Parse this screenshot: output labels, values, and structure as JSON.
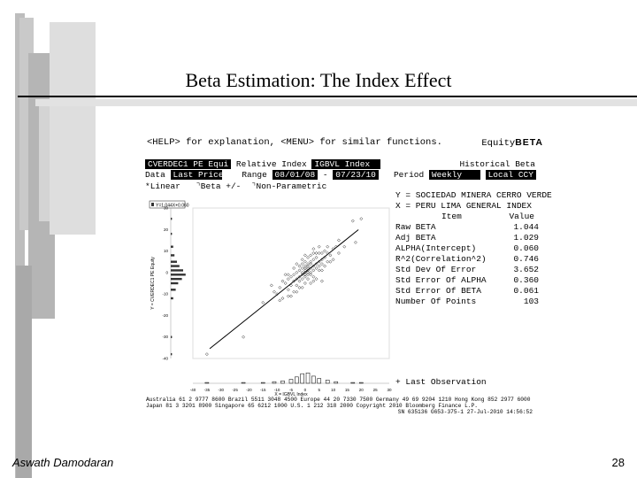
{
  "slide": {
    "title": "Beta Estimation: The Index Effect",
    "author": "Aswath Damodaran",
    "page_number": "28"
  },
  "terminal": {
    "help_line": "<HELP> for explanation, <MENU> for similar functions.",
    "brand_prefix": "Equity",
    "brand_suffix": "BETA",
    "security": "CVERDEC1 PE Equi",
    "relative_index_label": "Relative Index",
    "relative_index": "IGBVL Index",
    "historical_beta": "Historical Beta",
    "data_label": "Data",
    "data_value": "Last Price",
    "range_label": "Range",
    "range_start": "08/01/08",
    "range_sep": "-",
    "range_end": "07/23/10",
    "period_label": "Period",
    "period_value": "Weekly",
    "currency": "Local CCY",
    "opt_linear": "Linear",
    "opt_beta": "Beta +/-",
    "opt_nonparam": "Non-Parametric",
    "y_def": "Y = SOCIEDAD MINERA CERRO VERDE",
    "x_def": "X = PERU LIMA GENERAL INDEX",
    "col_item": "Item",
    "col_value": "Value",
    "stats": [
      {
        "label": "Raw BETA",
        "value": "1.044"
      },
      {
        "label": "Adj BETA",
        "value": "1.029"
      },
      {
        "label": "ALPHA(Intercept)",
        "value": "0.060"
      },
      {
        "label": "R^2(Correlation^2)",
        "value": "0.746"
      },
      {
        "label": "Std Dev Of Error",
        "value": "3.652"
      },
      {
        "label": "Std Error Of ALPHA",
        "value": "0.360"
      },
      {
        "label": "Std Error Of BETA",
        "value": "0.061"
      },
      {
        "label": "Number Of Points",
        "value": "103"
      }
    ],
    "last_observation": "Last Observation",
    "y_axis_label": "Y = CVERDEC1 PE Equity",
    "x_axis_label": "X = IGBVL Index",
    "legend_text": "Y=1.044X+0.060",
    "footer_line1": "Australia 61 2 9777 8600 Brazil 5511 3048 4500 Europe 44 20 7330 7500 Germany 49 69 9204 1210 Hong Kong 852 2977 6000",
    "footer_line2": "Japan 81 3 3201 8900        Singapore 65 6212 1000       U.S. 1 212 318 2000         Copyright 2010 Bloomberg Finance L.P.",
    "footer_line3": "SN 635136 G653-375-1 27-Jul-2010 14:56:52"
  },
  "chart_data": {
    "type": "scatter",
    "title": "",
    "xlabel": "X = IGBVL Index",
    "ylabel": "Y = CVERDEC1 PE Equity",
    "xlim": [
      -40,
      30
    ],
    "ylim": [
      -40,
      30
    ],
    "x_ticks": [
      -40,
      -35,
      -30,
      -25,
      -20,
      -15,
      -10,
      -5,
      0,
      5,
      10,
      15,
      20,
      25,
      30
    ],
    "y_ticks": [
      30,
      20,
      10,
      0,
      -10,
      -20,
      -30,
      -40
    ],
    "regression": {
      "slope": 1.044,
      "intercept": 0.06,
      "x_range": [
        -34,
        19
      ]
    },
    "points": [
      [
        -35,
        -38
      ],
      [
        -22,
        -30
      ],
      [
        -10,
        -10
      ],
      [
        -9,
        -7
      ],
      [
        -8,
        -12
      ],
      [
        -7,
        -5
      ],
      [
        -6,
        -3
      ],
      [
        -6,
        -8
      ],
      [
        -5,
        -2
      ],
      [
        -5,
        -6
      ],
      [
        -4,
        -1
      ],
      [
        -4,
        -4
      ],
      [
        -4,
        -9
      ],
      [
        -3,
        0
      ],
      [
        -3,
        -3
      ],
      [
        -3,
        -6
      ],
      [
        -2,
        1
      ],
      [
        -2,
        -2
      ],
      [
        -2,
        -4
      ],
      [
        -2,
        3
      ],
      [
        -1,
        0
      ],
      [
        -1,
        -1
      ],
      [
        -1,
        2
      ],
      [
        -1,
        -3
      ],
      [
        -1,
        4
      ],
      [
        0,
        1
      ],
      [
        0,
        -1
      ],
      [
        0,
        2
      ],
      [
        0,
        3
      ],
      [
        0,
        -2
      ],
      [
        0,
        5
      ],
      [
        0,
        0
      ],
      [
        1,
        0
      ],
      [
        1,
        2
      ],
      [
        1,
        -1
      ],
      [
        1,
        3
      ],
      [
        1,
        4
      ],
      [
        1,
        1
      ],
      [
        2,
        2
      ],
      [
        2,
        0
      ],
      [
        2,
        4
      ],
      [
        2,
        -1
      ],
      [
        2,
        5
      ],
      [
        3,
        3
      ],
      [
        3,
        1
      ],
      [
        3,
        6
      ],
      [
        3,
        -2
      ],
      [
        4,
        4
      ],
      [
        4,
        2
      ],
      [
        4,
        7
      ],
      [
        5,
        5
      ],
      [
        5,
        3
      ],
      [
        5,
        9
      ],
      [
        6,
        6
      ],
      [
        6,
        4
      ],
      [
        6,
        1
      ],
      [
        7,
        7
      ],
      [
        7,
        10
      ],
      [
        8,
        5
      ],
      [
        8,
        9
      ],
      [
        9,
        8
      ],
      [
        10,
        11
      ],
      [
        10,
        6
      ],
      [
        11,
        12
      ],
      [
        12,
        9
      ],
      [
        14,
        12
      ],
      [
        17,
        24
      ],
      [
        20,
        25
      ],
      [
        18,
        14
      ],
      [
        -12,
        -6
      ],
      [
        -15,
        -14
      ],
      [
        4,
        -3
      ],
      [
        -6,
        -11
      ],
      [
        3,
        9
      ],
      [
        -3,
        4
      ],
      [
        6,
        -4
      ],
      [
        -7,
        -1
      ],
      [
        2,
        -5
      ],
      [
        5,
        12
      ],
      [
        -1,
        6
      ],
      [
        0,
        8
      ],
      [
        1,
        7
      ],
      [
        -2,
        -7
      ],
      [
        -5,
        -11
      ],
      [
        3,
        -4
      ],
      [
        4,
        9
      ],
      [
        -8,
        -4
      ],
      [
        7,
        3
      ],
      [
        -4,
        2
      ],
      [
        2,
        8
      ],
      [
        0,
        -5
      ],
      [
        -3,
        -9
      ],
      [
        1,
        -3
      ],
      [
        5,
        1
      ],
      [
        -6,
        -1
      ],
      [
        8,
        12
      ],
      [
        -9,
        -13
      ],
      [
        6,
        9
      ],
      [
        -1,
        -7
      ],
      [
        9,
        5
      ],
      [
        -11,
        -9
      ],
      [
        12,
        15
      ],
      [
        3,
        11
      ]
    ],
    "y_histogram": [
      {
        "y": 25,
        "count": 1
      },
      {
        "y": 18,
        "count": 1
      },
      {
        "y": 12,
        "count": 2
      },
      {
        "y": 8,
        "count": 3
      },
      {
        "y": 5,
        "count": 5
      },
      {
        "y": 3,
        "count": 7
      },
      {
        "y": 1,
        "count": 10
      },
      {
        "y": -1,
        "count": 12
      },
      {
        "y": -3,
        "count": 9
      },
      {
        "y": -5,
        "count": 6
      },
      {
        "y": -8,
        "count": 4
      },
      {
        "y": -12,
        "count": 2
      },
      {
        "y": -30,
        "count": 1
      },
      {
        "y": -38,
        "count": 1
      }
    ],
    "x_histogram": [
      {
        "x": -35,
        "count": 1
      },
      {
        "x": -22,
        "count": 1
      },
      {
        "x": -15,
        "count": 1
      },
      {
        "x": -11,
        "count": 2
      },
      {
        "x": -8,
        "count": 3
      },
      {
        "x": -5,
        "count": 5
      },
      {
        "x": -3,
        "count": 8
      },
      {
        "x": -1,
        "count": 12
      },
      {
        "x": 1,
        "count": 13
      },
      {
        "x": 3,
        "count": 9
      },
      {
        "x": 5,
        "count": 6
      },
      {
        "x": 8,
        "count": 4
      },
      {
        "x": 11,
        "count": 2
      },
      {
        "x": 17,
        "count": 1
      },
      {
        "x": 20,
        "count": 1
      }
    ]
  }
}
